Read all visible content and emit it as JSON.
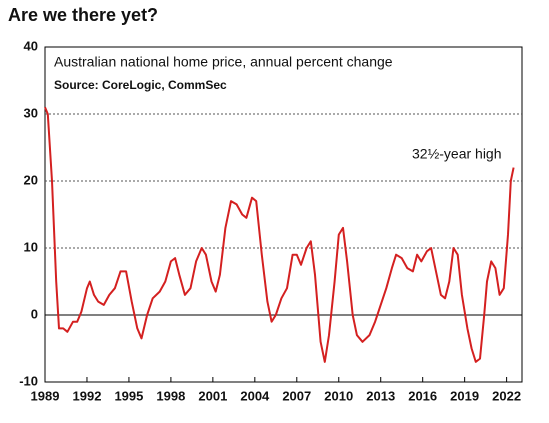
{
  "chart_data": {
    "type": "line",
    "title": "Are we there yet?",
    "subtitle": "Australian national home price, annual percent change",
    "source": "Source: CoreLogic, CommSec",
    "annotation": "32½-year high",
    "series": [
      {
        "name": "Australian national home price, annual percent change",
        "color": "#d42020",
        "x": [
          1989.0,
          1989.2,
          1989.5,
          1989.8,
          1990.0,
          1990.3,
          1990.6,
          1991.0,
          1991.3,
          1991.6,
          1992.0,
          1992.2,
          1992.5,
          1992.8,
          1993.2,
          1993.6,
          1994.0,
          1994.4,
          1994.8,
          1995.2,
          1995.6,
          1995.9,
          1996.3,
          1996.7,
          1997.2,
          1997.6,
          1998.0,
          1998.3,
          1998.6,
          1999.0,
          1999.4,
          1999.8,
          2000.2,
          2000.5,
          2000.9,
          2001.2,
          2001.5,
          2001.9,
          2002.3,
          2002.7,
          2003.1,
          2003.4,
          2003.8,
          2004.1,
          2004.5,
          2004.9,
          2005.2,
          2005.5,
          2005.9,
          2006.3,
          2006.7,
          2007.0,
          2007.3,
          2007.7,
          2008.0,
          2008.3,
          2008.7,
          2009.0,
          2009.3,
          2009.7,
          2010.0,
          2010.3,
          2010.6,
          2011.0,
          2011.3,
          2011.7,
          2012.2,
          2012.6,
          2013.0,
          2013.4,
          2013.8,
          2014.1,
          2014.5,
          2014.9,
          2015.3,
          2015.6,
          2015.9,
          2016.3,
          2016.6,
          2017.0,
          2017.3,
          2017.6,
          2017.9,
          2018.2,
          2018.5,
          2018.8,
          2019.2,
          2019.5,
          2019.8,
          2020.1,
          2020.4,
          2020.6,
          2020.9,
          2021.2,
          2021.5,
          2021.8,
          2022.1,
          2022.3,
          2022.5
        ],
        "values": [
          31,
          30,
          20,
          5,
          -2,
          -2,
          -2.5,
          -1,
          -1,
          0.5,
          4,
          5,
          3,
          2,
          1.5,
          3,
          4,
          6.5,
          6.5,
          2,
          -2,
          -3.5,
          0,
          2.5,
          3.5,
          5,
          8,
          8.5,
          6,
          3,
          4,
          8,
          10,
          9,
          5,
          3.5,
          6,
          13,
          17,
          16.5,
          15,
          14.5,
          17.5,
          17,
          9,
          2,
          -1,
          0,
          2.5,
          4,
          9,
          9,
          7.5,
          10,
          11,
          6,
          -4,
          -7,
          -3,
          5,
          12,
          13,
          8,
          0,
          -3,
          -4,
          -3,
          -1,
          1.5,
          4,
          7,
          9,
          8.5,
          7,
          6.5,
          9,
          8,
          9.5,
          10,
          6,
          3,
          2.5,
          5,
          10,
          9,
          3,
          -2,
          -5,
          -7,
          -6.5,
          0,
          5,
          8,
          7,
          3,
          4,
          12,
          20,
          22
        ]
      }
    ],
    "xlim": [
      1989,
      2023.1
    ],
    "xticks": [
      1989,
      1992,
      1995,
      1998,
      2001,
      2004,
      2007,
      2010,
      2013,
      2016,
      2019,
      2022
    ],
    "ylim": [
      -10,
      40
    ],
    "yticks": [
      -10,
      0,
      10,
      20,
      30,
      40
    ],
    "grid": true
  }
}
